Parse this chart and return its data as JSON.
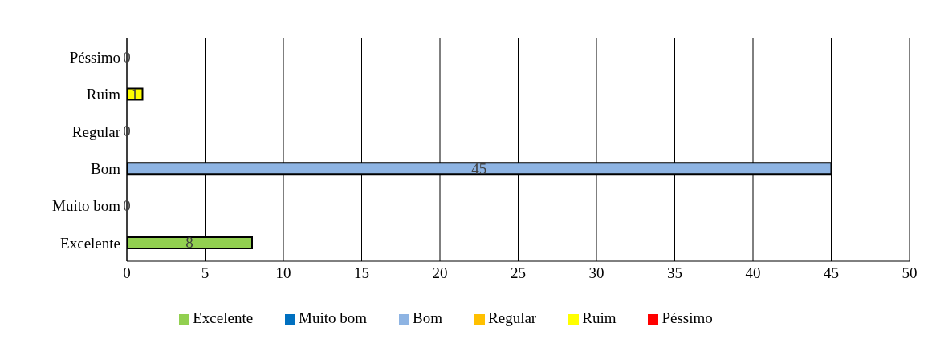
{
  "chart_data": {
    "type": "bar",
    "orientation": "horizontal",
    "stacked": true,
    "categories": [
      "Péssimo",
      "Ruim",
      "Regular",
      "Bom",
      "Muito bom",
      "Excelente"
    ],
    "series": [
      {
        "name": "Excelente",
        "color": "#92d050",
        "values": [
          null,
          null,
          null,
          null,
          null,
          8
        ]
      },
      {
        "name": "Muito bom",
        "color": "#0070c0",
        "values": [
          null,
          null,
          null,
          null,
          0,
          null
        ]
      },
      {
        "name": "Bom",
        "color": "#8eb4e3",
        "values": [
          null,
          null,
          null,
          45,
          null,
          null
        ]
      },
      {
        "name": "Regular",
        "color": "#ffc000",
        "values": [
          null,
          null,
          0,
          null,
          null,
          null
        ]
      },
      {
        "name": "Ruim",
        "color": "#ffff00",
        "values": [
          null,
          1,
          null,
          null,
          null,
          null
        ]
      },
      {
        "name": "Péssimo",
        "color": "#ff0000",
        "values": [
          0,
          null,
          null,
          null,
          null,
          null
        ]
      }
    ],
    "xlim": [
      0,
      50
    ],
    "xticks": [
      0,
      5,
      10,
      15,
      20,
      25,
      30,
      35,
      40,
      45,
      50
    ],
    "grid": "x",
    "legend": "bottom",
    "data_labels": true
  }
}
